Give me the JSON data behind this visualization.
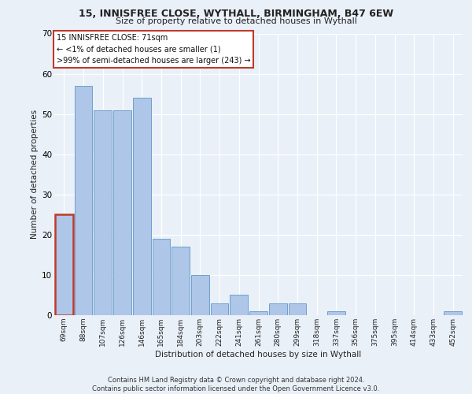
{
  "title_line1": "15, INNISFREE CLOSE, WYTHALL, BIRMINGHAM, B47 6EW",
  "title_line2": "Size of property relative to detached houses in Wythall",
  "xlabel": "Distribution of detached houses by size in Wythall",
  "ylabel": "Number of detached properties",
  "bar_labels": [
    "69sqm",
    "88sqm",
    "107sqm",
    "126sqm",
    "146sqm",
    "165sqm",
    "184sqm",
    "203sqm",
    "222sqm",
    "241sqm",
    "261sqm",
    "280sqm",
    "299sqm",
    "318sqm",
    "337sqm",
    "356sqm",
    "375sqm",
    "395sqm",
    "414sqm",
    "433sqm",
    "452sqm"
  ],
  "bar_values": [
    25,
    57,
    51,
    51,
    54,
    19,
    17,
    10,
    3,
    5,
    1,
    3,
    3,
    0,
    1,
    0,
    0,
    0,
    0,
    0,
    1
  ],
  "bar_color": "#aec6e8",
  "bar_edge_color": "#6ea0cc",
  "highlight_index": 0,
  "highlight_edge_color": "#c0392b",
  "annotation_text": "15 INNISFREE CLOSE: 71sqm\n← <1% of detached houses are smaller (1)\n>99% of semi-detached houses are larger (243) →",
  "annotation_box_color": "white",
  "annotation_box_edge": "#c0392b",
  "ylim": [
    0,
    70
  ],
  "yticks": [
    0,
    10,
    20,
    30,
    40,
    50,
    60,
    70
  ],
  "footer": "Contains HM Land Registry data © Crown copyright and database right 2024.\nContains public sector information licensed under the Open Government Licence v3.0.",
  "bg_color": "#eaf0f8",
  "plot_bg_color": "#eaf0f8",
  "grid_color": "#ffffff"
}
